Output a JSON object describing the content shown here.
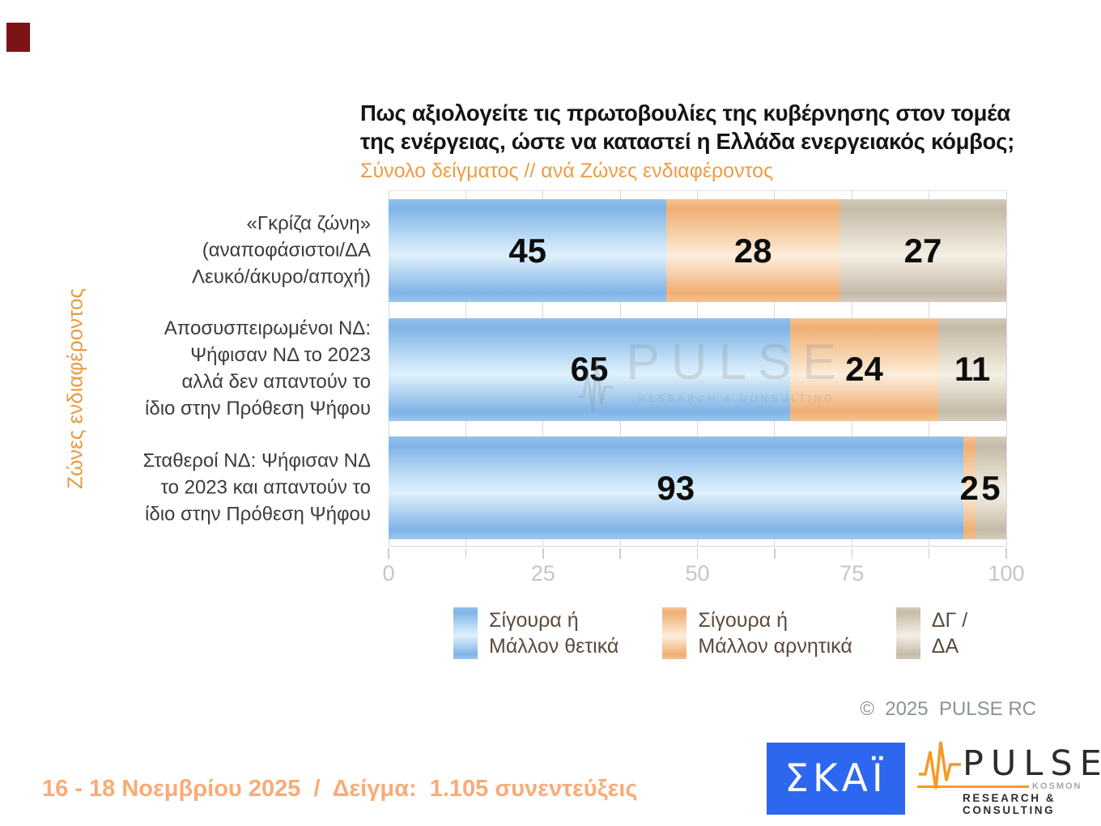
{
  "page": {
    "copyright": "©  2025  PULSE RC",
    "footer_note": "16 - 18 Νοεμβρίου 2025  /  Δείγμα:  1.105 συνεντεύξεις"
  },
  "chart_data": {
    "type": "bar",
    "orientation": "horizontal",
    "stacked": true,
    "title": "Πως αξιολογείτε τις πρωτοβουλίες της κυβέρνησης στον τομέα\nτης ενέργειας, ώστε να καταστεί η Ελλάδα ενεργειακός κόμβος;",
    "subtitle": "Σύνολο δείγματος // ανά Ζώνες ενδιαφέροντος",
    "axis_label": "Ζώνες ενδιαφέροντος",
    "categories": [
      "«Γκρίζα ζώνη»\n(αναποφάσιστοι/ΔΑ\nΛευκό/άκυρο/αποχή)",
      "Αποσυσπειρωμένοι ΝΔ:\nΨήφισαν ΝΔ το 2023\nαλλά δεν απαντούν το\nίδιο στην Πρόθεση Ψήφου",
      "Σταθεροί ΝΔ: Ψήφισαν ΝΔ\nτο 2023 και απαντούν το\nίδιο στην Πρόθεση Ψήφου"
    ],
    "series": [
      {
        "name": "Σίγουρα ή Μάλλον θετικά",
        "legend_label": "Σίγουρα ή\nΜάλλον θετικά",
        "values": [
          45,
          65,
          93
        ],
        "color": "#7fb3e6",
        "gradient": [
          "#93c2ec",
          "#7fb3e6",
          "#cde6f8",
          "#def0fb",
          "#7fb3e6",
          "#9cc8ee"
        ]
      },
      {
        "name": "Σίγουρα ή Μάλλον αρνητικά",
        "legend_label": "Σίγουρα ή\nΜάλλον αρνητικά",
        "values": [
          28,
          24,
          2
        ],
        "color": "#efae73",
        "gradient": [
          "#f5c596",
          "#efae73",
          "#f9dfc1",
          "#fdeedd",
          "#efae73",
          "#f4c392"
        ]
      },
      {
        "name": "ΔΓ / ΔΑ",
        "legend_label": "ΔΓ /\nΔΑ",
        "values": [
          27,
          11,
          5
        ],
        "color": "#c5baa8",
        "gradient": [
          "#d5ccbd",
          "#c5baa8",
          "#ebe4d6",
          "#f4efe5",
          "#c5baa8",
          "#d6cdbf"
        ]
      }
    ],
    "xlim": [
      0,
      100
    ],
    "x_major_ticks": [
      0,
      25,
      50,
      75,
      100
    ],
    "x_minor_step": 12.5,
    "grid": true,
    "legend_position": "bottom"
  },
  "watermark": {
    "text": "PULSE",
    "subtext": "RESEARCH & CONSULTING"
  },
  "logos": {
    "skai": "ΣΚΑΪ",
    "pulse_word": "PULSE",
    "pulse_kosmon": "KOSMON",
    "pulse_sub": "RESEARCH & CONSULTING"
  }
}
